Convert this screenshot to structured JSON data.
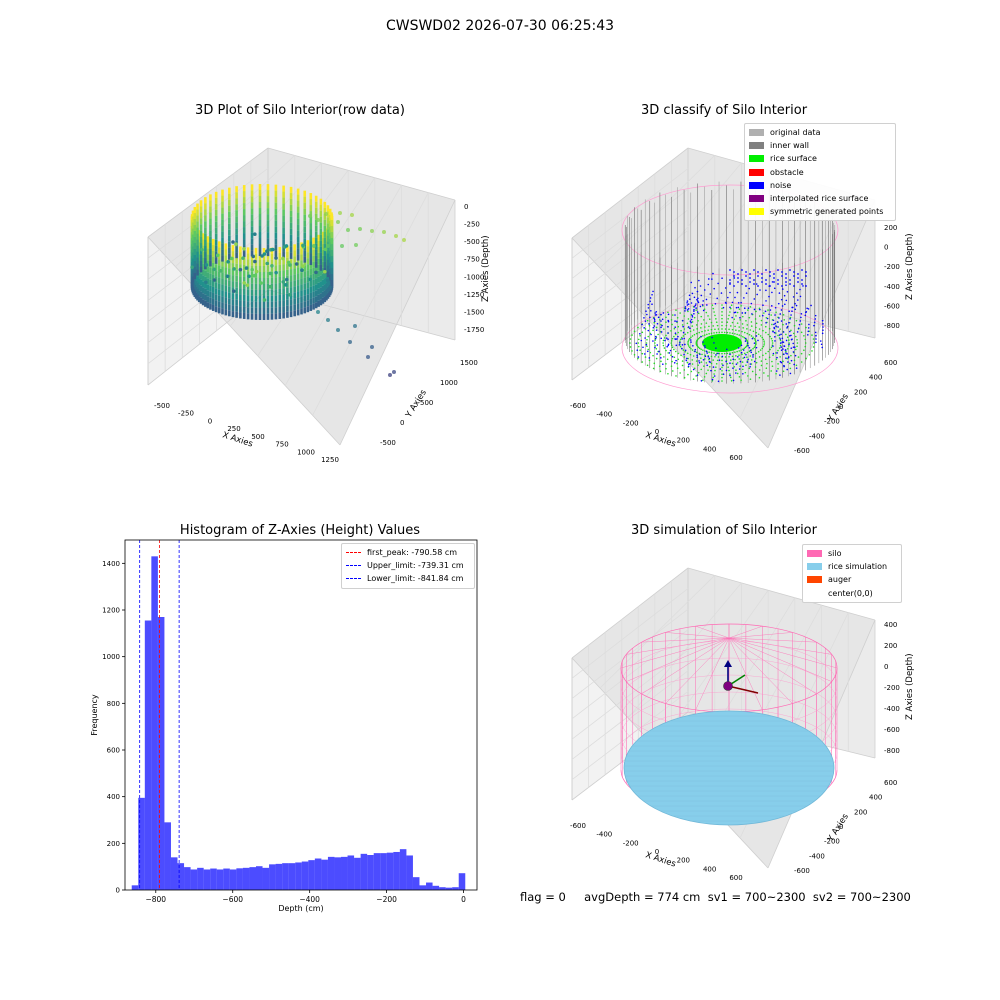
{
  "figure": {
    "suptitle": "CWSWD02 2026-07-30 06:25:43",
    "status_line": "flag = 0     avgDepth = 774 cm  sv1 = 700~2300  sv2 = 700~2300"
  },
  "panels": {
    "raw": {
      "title": "3D Plot of Silo Interior(row data)",
      "xlabel": "X Axies",
      "ylabel": "Y Axies",
      "zlabel": "Z Axies (Depth)",
      "x_ticks": [
        "-500",
        "-250",
        "0",
        "250",
        "500",
        "750",
        "1000",
        "1250"
      ],
      "y_ticks": [
        "-500",
        "0",
        "500",
        "1000",
        "1500"
      ],
      "z_ticks": [
        "0",
        "-250",
        "-500",
        "-750",
        "-1000",
        "-1250",
        "-1500",
        "-1750"
      ],
      "colormap": "viridis"
    },
    "classify": {
      "title": "3D classify of Silo Interior",
      "xlabel": "X Axies",
      "ylabel": "Y Axies",
      "zlabel": "Z Axies (Depth)",
      "x_ticks": [
        "-600",
        "-400",
        "-200",
        "0",
        "200",
        "400",
        "600"
      ],
      "y_ticks": [
        "-600",
        "-400",
        "-200",
        "0",
        "200",
        "400",
        "600"
      ],
      "z_ticks": [
        "200",
        "0",
        "-200",
        "-400",
        "-600",
        "-800"
      ],
      "legend": [
        {
          "label": "original data",
          "color": "#b0b0b0"
        },
        {
          "label": "inner wall",
          "color": "#808080"
        },
        {
          "label": "rice surface",
          "color": "#00ee00"
        },
        {
          "label": "obstacle",
          "color": "#ff0000"
        },
        {
          "label": "noise",
          "color": "#0000ff"
        },
        {
          "label": "interpolated rice surface",
          "color": "#800080"
        },
        {
          "label": "symmetric generated points",
          "color": "#ffff00"
        }
      ]
    },
    "simulation": {
      "title": "3D simulation of Silo Interior",
      "xlabel": "X Axies",
      "ylabel": "Y Axies",
      "zlabel": "Z Axies (Depth)",
      "x_ticks": [
        "-600",
        "-400",
        "-200",
        "0",
        "200",
        "400",
        "600"
      ],
      "y_ticks": [
        "-600",
        "-400",
        "-200",
        "0",
        "200",
        "400",
        "600"
      ],
      "z_ticks": [
        "400",
        "200",
        "0",
        "-200",
        "-400",
        "-600",
        "-800"
      ],
      "legend": [
        {
          "label": "silo",
          "color": "#ff69b4"
        },
        {
          "label": "rice simulation",
          "color": "#87ceeb"
        },
        {
          "label": "auger",
          "color": "#ff4500"
        },
        {
          "label": "center(0,0)",
          "color": "#ffffff"
        }
      ]
    }
  },
  "chart_data": {
    "type": "bar",
    "title": "Histogram of Z-Axies (Height) Values",
    "xlabel": "Depth (cm)",
    "ylabel": "Frequency",
    "xlim": [
      -880,
      35
    ],
    "ylim": [
      0,
      1500
    ],
    "x_ticks": [
      -800,
      -600,
      -400,
      -200,
      0
    ],
    "y_ticks": [
      0,
      200,
      400,
      600,
      800,
      1000,
      1200,
      1400
    ],
    "bar_color": "#0000ff",
    "bin_width": 17,
    "bins": [
      {
        "x": -854,
        "value": 20
      },
      {
        "x": -837,
        "value": 395
      },
      {
        "x": -820,
        "value": 1155
      },
      {
        "x": -803,
        "value": 1430
      },
      {
        "x": -786,
        "value": 1170
      },
      {
        "x": -769,
        "value": 290
      },
      {
        "x": -752,
        "value": 140
      },
      {
        "x": -735,
        "value": 115
      },
      {
        "x": -718,
        "value": 98
      },
      {
        "x": -701,
        "value": 88
      },
      {
        "x": -684,
        "value": 95
      },
      {
        "x": -667,
        "value": 88
      },
      {
        "x": -650,
        "value": 92
      },
      {
        "x": -633,
        "value": 88
      },
      {
        "x": -616,
        "value": 92
      },
      {
        "x": -599,
        "value": 88
      },
      {
        "x": -582,
        "value": 93
      },
      {
        "x": -565,
        "value": 95
      },
      {
        "x": -548,
        "value": 98
      },
      {
        "x": -531,
        "value": 102
      },
      {
        "x": -514,
        "value": 95
      },
      {
        "x": -497,
        "value": 110
      },
      {
        "x": -480,
        "value": 112
      },
      {
        "x": -463,
        "value": 115
      },
      {
        "x": -446,
        "value": 115
      },
      {
        "x": -429,
        "value": 118
      },
      {
        "x": -412,
        "value": 122
      },
      {
        "x": -395,
        "value": 128
      },
      {
        "x": -378,
        "value": 135
      },
      {
        "x": -361,
        "value": 130
      },
      {
        "x": -344,
        "value": 142
      },
      {
        "x": -327,
        "value": 140
      },
      {
        "x": -310,
        "value": 142
      },
      {
        "x": -293,
        "value": 148
      },
      {
        "x": -276,
        "value": 138
      },
      {
        "x": -259,
        "value": 155
      },
      {
        "x": -242,
        "value": 150
      },
      {
        "x": -225,
        "value": 158
      },
      {
        "x": -208,
        "value": 158
      },
      {
        "x": -191,
        "value": 160
      },
      {
        "x": -174,
        "value": 163
      },
      {
        "x": -157,
        "value": 175
      },
      {
        "x": -140,
        "value": 148
      },
      {
        "x": -123,
        "value": 55
      },
      {
        "x": -106,
        "value": 20
      },
      {
        "x": -89,
        "value": 32
      },
      {
        "x": -72,
        "value": 18
      },
      {
        "x": -55,
        "value": 12
      },
      {
        "x": -38,
        "value": 10
      },
      {
        "x": -21,
        "value": 12
      },
      {
        "x": -4,
        "value": 72
      }
    ],
    "lines": [
      {
        "label": "first_peak: -790.58 cm",
        "x": -790.58,
        "color": "#ff0000"
      },
      {
        "label": "Upper_limit: -739.31 cm",
        "x": -739.31,
        "color": "#0000ff"
      },
      {
        "label": "Lower_limit: -841.84 cm",
        "x": -841.84,
        "color": "#0000ff"
      }
    ]
  }
}
